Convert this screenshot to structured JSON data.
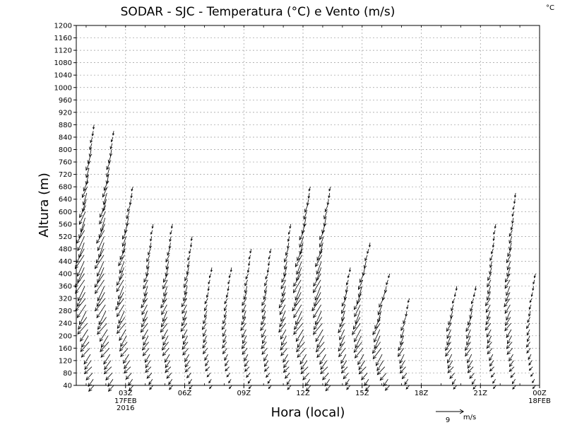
{
  "chart_data": {
    "type": "wind-barb-profile",
    "title": "SODAR - SJC - Temperatura (°C) e Vento (m/s)",
    "unit_corner": "°C",
    "xlabel": "Hora (local)",
    "ylabel": "Altura (m)",
    "ylim": [
      40,
      1200
    ],
    "yticks": [
      40,
      80,
      120,
      160,
      200,
      240,
      280,
      320,
      360,
      400,
      440,
      480,
      520,
      560,
      600,
      640,
      680,
      720,
      760,
      800,
      840,
      880,
      920,
      960,
      1000,
      1040,
      1080,
      1120,
      1160,
      1200
    ],
    "xlim_hours": [
      0.5,
      24
    ],
    "xticks": [
      {
        "hour": 3,
        "label": "03Z",
        "sub1": "17FEB",
        "sub2": "2016"
      },
      {
        "hour": 6,
        "label": "06Z",
        "sub1": "",
        "sub2": ""
      },
      {
        "hour": 9,
        "label": "09Z",
        "sub1": "",
        "sub2": ""
      },
      {
        "hour": 12,
        "label": "12Z",
        "sub1": "",
        "sub2": ""
      },
      {
        "hour": 15,
        "label": "15Z",
        "sub1": "",
        "sub2": ""
      },
      {
        "hour": 18,
        "label": "18Z",
        "sub1": "",
        "sub2": ""
      },
      {
        "hour": 21,
        "label": "21Z",
        "sub1": "",
        "sub2": ""
      },
      {
        "hour": 24,
        "label": "00Z",
        "sub1": "18FEB",
        "sub2": ""
      }
    ],
    "grid": true,
    "reference_vector": {
      "value": 9,
      "unit": "m/s",
      "label": "9"
    },
    "profiles": [
      {
        "hour": 1.4,
        "top": 880,
        "speed": 6.5
      },
      {
        "hour": 2.4,
        "top": 860,
        "speed": 6.5
      },
      {
        "hour": 3.4,
        "top": 690,
        "speed": 5.5
      },
      {
        "hour": 4.4,
        "top": 560,
        "speed": 4.5
      },
      {
        "hour": 5.4,
        "top": 570,
        "speed": 4.5
      },
      {
        "hour": 6.4,
        "top": 530,
        "speed": 4.0
      },
      {
        "hour": 7.4,
        "top": 430,
        "speed": 3.0
      },
      {
        "hour": 8.4,
        "top": 430,
        "speed": 3.0
      },
      {
        "hour": 9.4,
        "top": 490,
        "speed": 3.5
      },
      {
        "hour": 10.4,
        "top": 490,
        "speed": 3.5
      },
      {
        "hour": 11.4,
        "top": 570,
        "speed": 4.5
      },
      {
        "hour": 12.4,
        "top": 690,
        "speed": 6.0
      },
      {
        "hour": 13.4,
        "top": 680,
        "speed": 6.0
      },
      {
        "hour": 14.4,
        "top": 420,
        "speed": 4.5
      },
      {
        "hour": 15.4,
        "top": 500,
        "speed": 5.5
      },
      {
        "hour": 16.4,
        "top": 400,
        "speed": 5.5
      },
      {
        "hour": 17.4,
        "top": 320,
        "speed": 4.0
      },
      {
        "hour": 19.8,
        "top": 360,
        "speed": 4.0
      },
      {
        "hour": 20.8,
        "top": 370,
        "speed": 4.0
      },
      {
        "hour": 21.8,
        "top": 570,
        "speed": 3.5
      },
      {
        "hour": 22.8,
        "top": 670,
        "speed": 4.0
      },
      {
        "hour": 23.8,
        "top": 400,
        "speed": 2.5
      }
    ]
  }
}
